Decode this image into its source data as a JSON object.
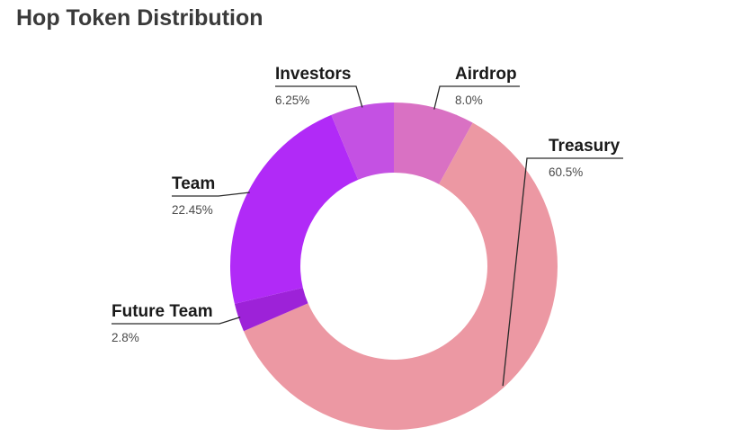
{
  "title": "Hop Token Distribution",
  "chart_data": {
    "type": "pie",
    "title": "Hop Token Distribution",
    "donut": true,
    "slices": [
      {
        "label": "Airdrop",
        "value": 8.0,
        "display": "8.0%",
        "color": "#d971c3"
      },
      {
        "label": "Treasury",
        "value": 60.5,
        "display": "60.5%",
        "color": "#ec98a3"
      },
      {
        "label": "Future Team",
        "value": 2.8,
        "display": "2.8%",
        "color": "#9d22d8"
      },
      {
        "label": "Team",
        "value": 22.45,
        "display": "22.45%",
        "color": "#b12af7"
      },
      {
        "label": "Investors",
        "value": 6.25,
        "display": "6.25%",
        "color": "#c451e3"
      }
    ]
  }
}
